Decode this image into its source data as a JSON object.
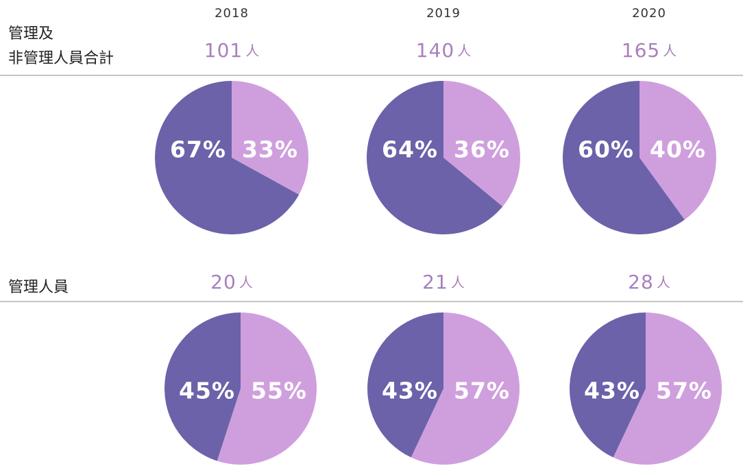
{
  "years": [
    "2018",
    "2019",
    "2020"
  ],
  "unit": "人",
  "rows": [
    {
      "label": [
        "管理及",
        "非管理人員合計"
      ],
      "totals": [
        "101",
        "140",
        "165"
      ]
    },
    {
      "label": [
        "管理人員"
      ],
      "totals": [
        "20",
        "21",
        "28"
      ]
    }
  ],
  "chart_data": [
    {
      "type": "pie",
      "values": [
        33,
        67
      ],
      "value_labels": [
        "33%",
        "67%"
      ],
      "colors": [
        "#cf9fdd",
        "#6b62aa"
      ]
    },
    {
      "type": "pie",
      "values": [
        36,
        64
      ],
      "value_labels": [
        "36%",
        "64%"
      ],
      "colors": [
        "#cf9fdd",
        "#6b62aa"
      ]
    },
    {
      "type": "pie",
      "values": [
        40,
        60
      ],
      "value_labels": [
        "40%",
        "60%"
      ],
      "colors": [
        "#cf9fdd",
        "#6b62aa"
      ]
    },
    {
      "type": "pie",
      "values": [
        55,
        45
      ],
      "value_labels": [
        "55%",
        "45%"
      ],
      "colors": [
        "#cf9fdd",
        "#6b62aa"
      ]
    },
    {
      "type": "pie",
      "values": [
        57,
        43
      ],
      "value_labels": [
        "57%",
        "43%"
      ],
      "colors": [
        "#cf9fdd",
        "#6b62aa"
      ]
    },
    {
      "type": "pie",
      "values": [
        57,
        43
      ],
      "value_labels": [
        "57%",
        "43%"
      ],
      "colors": [
        "#cf9fdd",
        "#6b62aa"
      ]
    }
  ]
}
